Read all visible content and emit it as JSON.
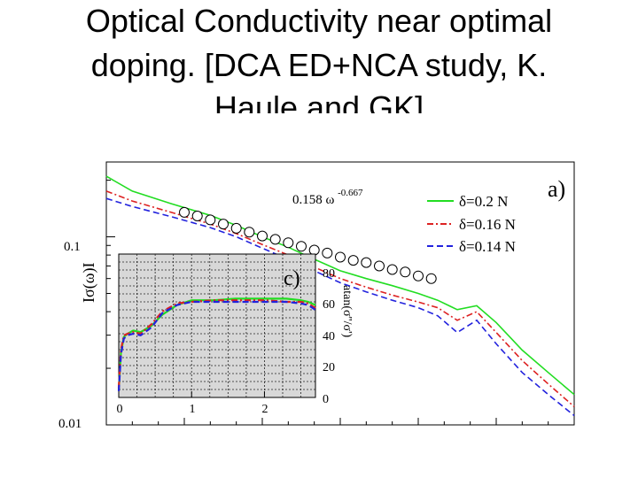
{
  "slide": {
    "title_lines": [
      "Optical Conductivity near optimal",
      "doping. [DCA ED+NCA study, K.",
      "Haule and GK]"
    ]
  },
  "chart_data": [
    {
      "type": "line",
      "panel_label": "a)",
      "ylabel": "Iσ(ω)I",
      "xlabel": "",
      "yscale": "log",
      "ylim": [
        0.01,
        0.25
      ],
      "xlim": [
        0,
        3.6
      ],
      "y_ticks": [
        0.01,
        0.1
      ],
      "y_tick_labels": [
        "0.01",
        "0.1"
      ],
      "annotation": {
        "base": "0.158 ω",
        "exponent": "-0.667"
      },
      "legend_position": "top-right",
      "series": [
        {
          "name": "δ=0.2  N",
          "color": "#22dd22",
          "dash": "solid",
          "x": [
            0,
            0.2,
            0.5,
            0.8,
            1.0,
            1.2,
            1.4,
            1.6,
            1.8,
            2.0,
            2.2,
            2.4,
            2.55,
            2.7,
            2.85,
            3.0,
            3.2,
            3.4,
            3.6
          ],
          "y": [
            0.21,
            0.175,
            0.15,
            0.13,
            0.115,
            0.1,
            0.088,
            0.076,
            0.066,
            0.06,
            0.055,
            0.05,
            0.046,
            0.041,
            0.043,
            0.035,
            0.025,
            0.019,
            0.0145
          ]
        },
        {
          "name": "δ=0.16 N",
          "color": "#dd2222",
          "dash": "dashdot",
          "x": [
            0,
            0.2,
            0.5,
            0.8,
            1.0,
            1.2,
            1.4,
            1.6,
            1.8,
            2.0,
            2.2,
            2.4,
            2.55,
            2.7,
            2.85,
            3.0,
            3.2,
            3.4,
            3.6
          ],
          "y": [
            0.175,
            0.155,
            0.135,
            0.117,
            0.104,
            0.091,
            0.08,
            0.069,
            0.06,
            0.054,
            0.049,
            0.045,
            0.042,
            0.036,
            0.04,
            0.031,
            0.022,
            0.0165,
            0.0125
          ]
        },
        {
          "name": "δ=0.14 N",
          "color": "#2222dd",
          "dash": "dashed",
          "x": [
            0,
            0.2,
            0.5,
            0.8,
            1.0,
            1.2,
            1.4,
            1.6,
            1.8,
            2.0,
            2.2,
            2.4,
            2.55,
            2.7,
            2.85,
            3.0,
            3.2,
            3.4,
            3.6
          ],
          "y": [
            0.16,
            0.145,
            0.128,
            0.112,
            0.1,
            0.087,
            0.076,
            0.066,
            0.057,
            0.051,
            0.046,
            0.042,
            0.038,
            0.031,
            0.036,
            0.027,
            0.019,
            0.0145,
            0.0112
          ]
        },
        {
          "name": "0.158 ω^-0.667",
          "color": "#000000",
          "dash": "markers",
          "marker": "open-circle",
          "x": [
            0.6,
            0.7,
            0.8,
            0.9,
            1.0,
            1.1,
            1.2,
            1.3,
            1.4,
            1.5,
            1.6,
            1.7,
            1.8,
            1.9,
            2.0,
            2.1,
            2.2,
            2.3,
            2.4,
            2.5
          ],
          "y": [
            0.135,
            0.129,
            0.123,
            0.117,
            0.111,
            0.106,
            0.101,
            0.097,
            0.093,
            0.089,
            0.085,
            0.082,
            0.078,
            0.075,
            0.073,
            0.07,
            0.067,
            0.065,
            0.062,
            0.06
          ]
        }
      ]
    },
    {
      "type": "line",
      "panel_label": "c)",
      "ylabel": "atan(σ''/σ')",
      "xlim": [
        0,
        2.7
      ],
      "ylim": [
        0,
        90
      ],
      "x_ticks": [
        0,
        1,
        2
      ],
      "x_tick_labels": [
        "0",
        "1",
        "2"
      ],
      "y_ticks": [
        0,
        20,
        40,
        60,
        80
      ],
      "y_tick_labels": [
        "0",
        "20",
        "40",
        "60",
        "80"
      ],
      "grid": true,
      "series": [
        {
          "name": "δ=0.2",
          "color": "#22dd22",
          "dash": "solid",
          "x": [
            0,
            0.03,
            0.07,
            0.12,
            0.2,
            0.3,
            0.45,
            0.6,
            0.8,
            1.0,
            1.3,
            1.6,
            2.0,
            2.3,
            2.5,
            2.6,
            2.7
          ],
          "y": [
            5,
            28,
            38,
            40,
            42,
            41,
            45,
            52,
            58,
            61,
            61,
            62,
            62,
            62,
            61,
            60,
            58
          ]
        },
        {
          "name": "δ=0.16",
          "color": "#dd2222",
          "dash": "dashdot",
          "x": [
            0,
            0.03,
            0.07,
            0.12,
            0.2,
            0.3,
            0.45,
            0.6,
            0.8,
            1.0,
            1.3,
            1.6,
            2.0,
            2.3,
            2.5,
            2.6,
            2.7
          ],
          "y": [
            6,
            30,
            39,
            40,
            41,
            40,
            46,
            54,
            59,
            60,
            61,
            61,
            61,
            60,
            60,
            59,
            56
          ]
        },
        {
          "name": "δ=0.14",
          "color": "#2222dd",
          "dash": "dashed",
          "x": [
            0,
            0.03,
            0.07,
            0.12,
            0.2,
            0.3,
            0.45,
            0.6,
            0.8,
            1.0,
            1.3,
            1.6,
            2.0,
            2.3,
            2.5,
            2.6,
            2.7
          ],
          "y": [
            4,
            27,
            37,
            39,
            40,
            39,
            44,
            53,
            58,
            60,
            60,
            60,
            60,
            60,
            59,
            58,
            55
          ]
        }
      ]
    }
  ]
}
